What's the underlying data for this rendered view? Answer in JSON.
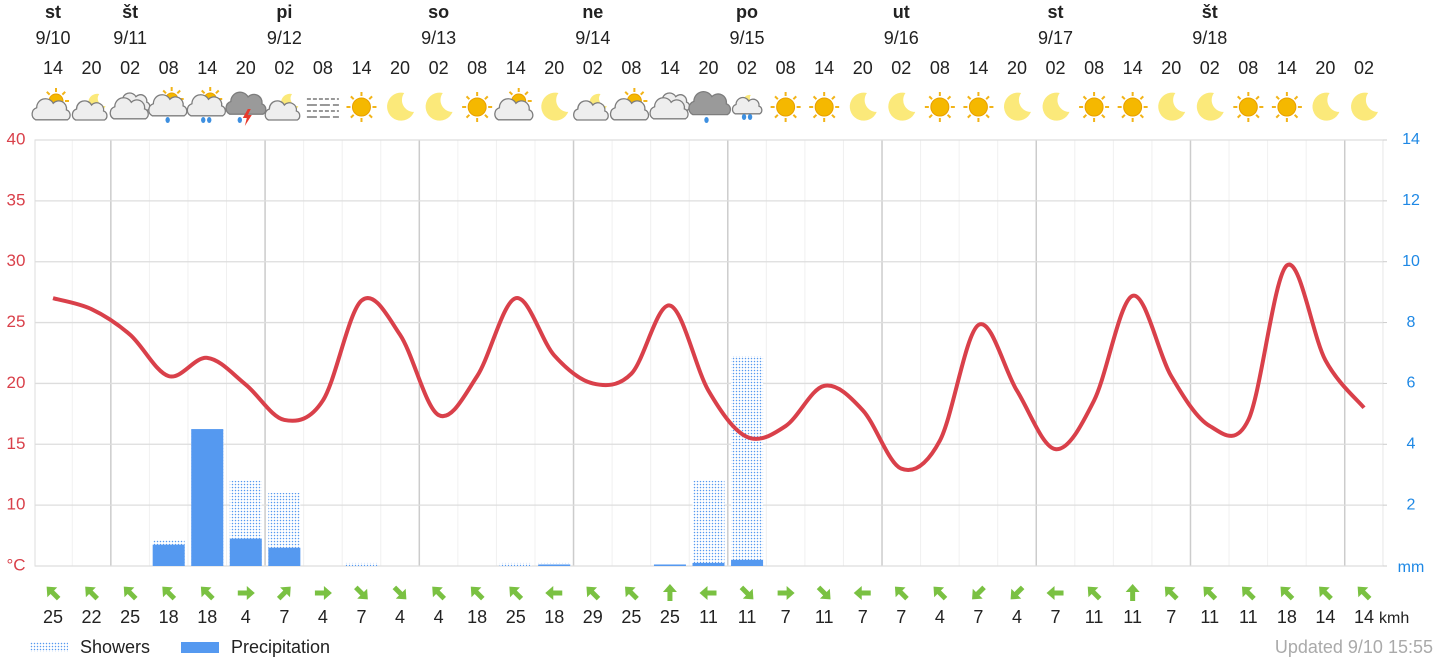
{
  "chart_data": {
    "type": "line",
    "days": [
      {
        "name": "st",
        "date": "9/10"
      },
      {
        "name": "št",
        "date": "9/11"
      },
      {
        "name": "pi",
        "date": "9/12"
      },
      {
        "name": "so",
        "date": "9/13"
      },
      {
        "name": "ne",
        "date": "9/14"
      },
      {
        "name": "po",
        "date": "9/15"
      },
      {
        "name": "ut",
        "date": "9/16"
      },
      {
        "name": "st",
        "date": "9/17"
      },
      {
        "name": "št",
        "date": "9/18"
      }
    ],
    "categories": [
      "14",
      "20",
      "02",
      "08",
      "14",
      "20",
      "02",
      "08",
      "14",
      "20",
      "02",
      "08",
      "14",
      "20",
      "02",
      "08",
      "14",
      "20",
      "02",
      "08",
      "14",
      "20",
      "02",
      "08",
      "14",
      "20",
      "02",
      "08",
      "14",
      "20",
      "02",
      "08",
      "14",
      "20",
      "02"
    ],
    "temperature": {
      "color": "#d9404a",
      "values": [
        27.0,
        26.1,
        24.0,
        20.6,
        22.1,
        19.9,
        17.0,
        18.6,
        26.8,
        24.0,
        17.4,
        20.6,
        27.0,
        22.3,
        20.0,
        20.8,
        26.4,
        19.4,
        15.6,
        16.5,
        19.8,
        17.8,
        13.0,
        15.3,
        24.8,
        19.4,
        14.6,
        18.6,
        27.2,
        20.6,
        16.5,
        17.0,
        29.7,
        21.9,
        18.0
      ]
    },
    "showers": {
      "name": "Showers",
      "color": "#5599f0",
      "values": [
        0,
        0,
        0,
        0.85,
        4.5,
        2.8,
        2.4,
        0,
        0.1,
        0,
        0,
        0,
        0.1,
        0.1,
        0,
        0,
        0,
        2.8,
        6.9,
        0,
        0,
        0,
        0,
        0,
        0,
        0,
        0,
        0,
        0,
        0,
        0,
        0,
        0,
        0,
        0
      ]
    },
    "precipitation": {
      "name": "Precipitation",
      "color": "#5599f0",
      "values": [
        0,
        0,
        0,
        0.7,
        4.5,
        0.9,
        0.6,
        0,
        0,
        0,
        0,
        0,
        0,
        0.05,
        0,
        0,
        0.05,
        0.1,
        0.2,
        0,
        0,
        0,
        0,
        0,
        0,
        0,
        0,
        0,
        0,
        0,
        0,
        0,
        0,
        0,
        0
      ]
    },
    "ylim": [
      5,
      40
    ],
    "yticks": [
      {
        "value": 5,
        "label": "°C"
      },
      10,
      15,
      20,
      25,
      30,
      35,
      40
    ],
    "y2lim": [
      0,
      14
    ],
    "y2ticks": [
      {
        "value": 0,
        "label": "mm"
      },
      2,
      4,
      6,
      8,
      10,
      12,
      14
    ],
    "grid": true,
    "wind": {
      "color": "#7ac142",
      "unit": "kmh",
      "speeds": [
        25,
        22,
        25,
        18,
        18,
        4,
        7,
        4,
        7,
        4,
        4,
        18,
        25,
        18,
        29,
        25,
        25,
        11,
        11,
        7,
        11,
        7,
        7,
        4,
        7,
        4,
        7,
        11,
        11,
        7,
        11,
        11,
        18,
        14,
        14
      ],
      "directions": [
        315,
        315,
        315,
        315,
        315,
        90,
        45,
        90,
        135,
        135,
        315,
        315,
        315,
        270,
        315,
        315,
        0,
        270,
        135,
        90,
        135,
        270,
        315,
        315,
        225,
        225,
        270,
        315,
        0,
        315,
        315,
        315,
        315,
        315,
        315
      ]
    },
    "updated": "Updated 9/10 15:55"
  }
}
